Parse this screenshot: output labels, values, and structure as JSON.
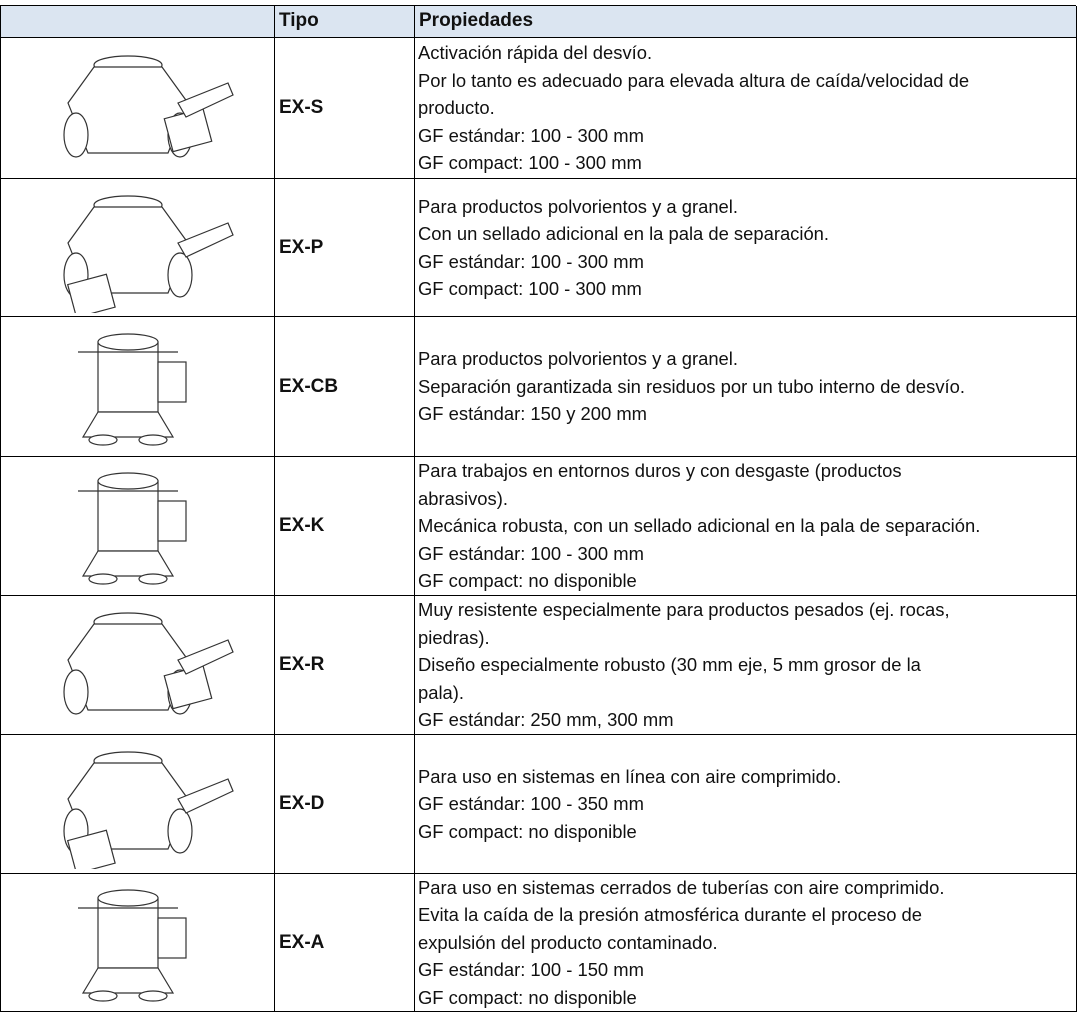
{
  "table": {
    "header": [
      "Tipo",
      "Propiedades"
    ],
    "rows": [
      {
        "type": "EX-S",
        "properties": [
          "Activación rápida del desvío.",
          "Por lo tanto es adecuado para elevada altura de caída/velocidad de",
          "producto.",
          "GF estándar: 100 - 300 mm",
          "GF compact: 100 - 300 mm"
        ]
      },
      {
        "type": "EX-P",
        "properties": [
          "Para productos polvorientos y a granel.",
          "Con un sellado adicional en la pala de separación.",
          "GF estándar: 100 - 300 mm",
          "GF compact: 100 - 300 mm"
        ]
      },
      {
        "type": "EX-CB",
        "properties": [
          "Para productos polvorientos y a granel.",
          "Separación garantizada sin residuos por un tubo interno de desvío.",
          "GF estándar: 150 y 200 mm"
        ]
      },
      {
        "type": "EX-K",
        "properties": [
          "Para trabajos en entornos duros y con desgaste (productos",
          "abrasivos).",
          "Mecánica robusta, con un sellado adicional en la pala de separación.",
          "GF estándar: 100 - 300 mm",
          "GF compact: no disponible"
        ]
      },
      {
        "type": "EX-R",
        "properties": [
          "Muy resistente especialmente para productos pesados (ej. rocas,",
          "piedras).",
          "Diseño especialmente robusto (30 mm eje, 5 mm grosor de la",
          "pala).",
          "GF estándar: 250 mm, 300 mm"
        ]
      },
      {
        "type": "EX-D",
        "properties": [
          "Para uso en sistemas en línea con aire comprimido.",
          "GF estándar: 100 - 350 mm",
          "GF compact: no disponible"
        ]
      },
      {
        "type": "EX-A",
        "properties": [
          "Para uso en sistemas cerrados de tuberías con aire comprimido.",
          "Evita la caída de la presión atmosférica durante el proceso de",
          "expulsión del producto contaminado.",
          "GF estándar: 100 - 150 mm",
          "GF compact: no disponible"
        ]
      }
    ]
  }
}
